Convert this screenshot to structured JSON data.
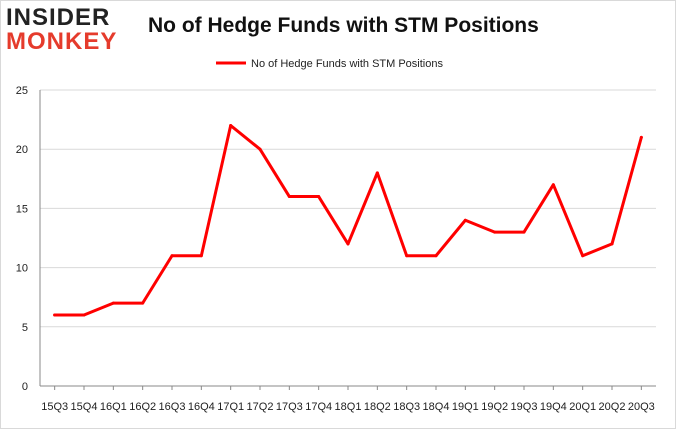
{
  "logo": {
    "line1": "INSIDER",
    "line2": "MONKEY"
  },
  "colors": {
    "series": "#ff0000",
    "grid": "#d9d9d9",
    "axis": "#888888",
    "text": "#222222"
  },
  "chart_data": {
    "type": "line",
    "title": "No of Hedge Funds with STM Positions",
    "xlabel": "",
    "ylabel": "",
    "ylim": [
      0,
      25
    ],
    "yticks": [
      0,
      5,
      10,
      15,
      20,
      25
    ],
    "grid": true,
    "legend_position": "top-center",
    "categories": [
      "15Q3",
      "15Q4",
      "16Q1",
      "16Q2",
      "16Q3",
      "16Q4",
      "17Q1",
      "17Q2",
      "17Q3",
      "17Q4",
      "18Q1",
      "18Q2",
      "18Q3",
      "18Q4",
      "19Q1",
      "19Q2",
      "19Q3",
      "19Q4",
      "20Q1",
      "20Q2",
      "20Q3"
    ],
    "series": [
      {
        "name": "No of Hedge Funds with STM Positions",
        "values": [
          6,
          6,
          7,
          7,
          11,
          11,
          22,
          20,
          16,
          16,
          12,
          18,
          11,
          11,
          14,
          13,
          13,
          17,
          11,
          12,
          21
        ]
      }
    ]
  }
}
